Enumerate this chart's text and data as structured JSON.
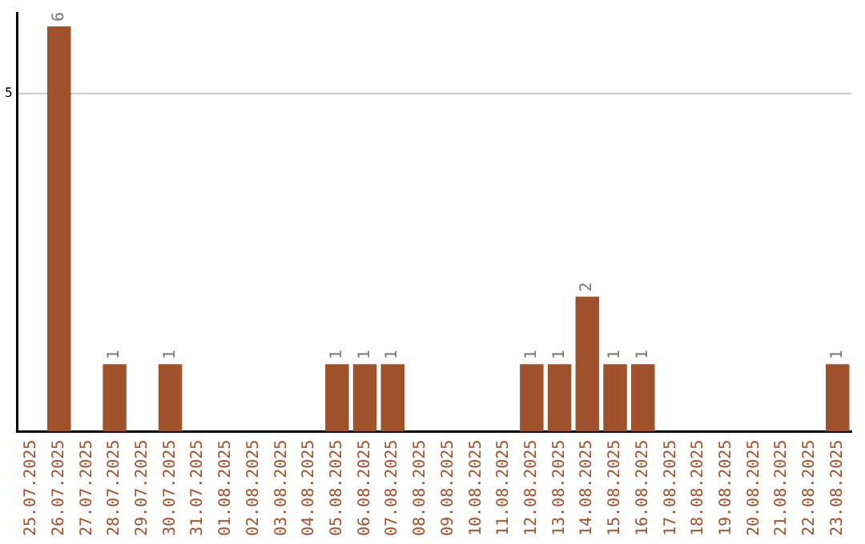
{
  "chart_data": {
    "type": "bar",
    "categories": [
      "25.07.2025",
      "26.07.2025",
      "27.07.2025",
      "28.07.2025",
      "29.07.2025",
      "30.07.2025",
      "31.07.2025",
      "01.08.2025",
      "02.08.2025",
      "03.08.2025",
      "04.08.2025",
      "05.08.2025",
      "06.08.2025",
      "07.08.2025",
      "08.08.2025",
      "09.08.2025",
      "10.08.2025",
      "11.08.2025",
      "12.08.2025",
      "13.08.2025",
      "14.08.2025",
      "15.08.2025",
      "16.08.2025",
      "17.08.2025",
      "18.08.2025",
      "19.08.2025",
      "20.08.2025",
      "21.08.2025",
      "22.08.2025",
      "23.08.2025"
    ],
    "values": [
      0,
      6,
      0,
      1,
      0,
      1,
      0,
      0,
      0,
      0,
      0,
      1,
      1,
      1,
      0,
      0,
      0,
      0,
      1,
      1,
      2,
      1,
      1,
      0,
      0,
      0,
      0,
      0,
      0,
      1
    ],
    "value_labels": [
      null,
      "6",
      null,
      "1",
      null,
      "1",
      null,
      null,
      null,
      null,
      null,
      "1",
      "1",
      "1",
      null,
      null,
      null,
      null,
      "1",
      "1",
      "2",
      "1",
      "1",
      null,
      null,
      null,
      null,
      null,
      null,
      "1"
    ],
    "color": "#a0522d",
    "ylim": [
      0,
      6.2
    ],
    "yticks": [
      5
    ],
    "grid": "y",
    "legend": false
  }
}
